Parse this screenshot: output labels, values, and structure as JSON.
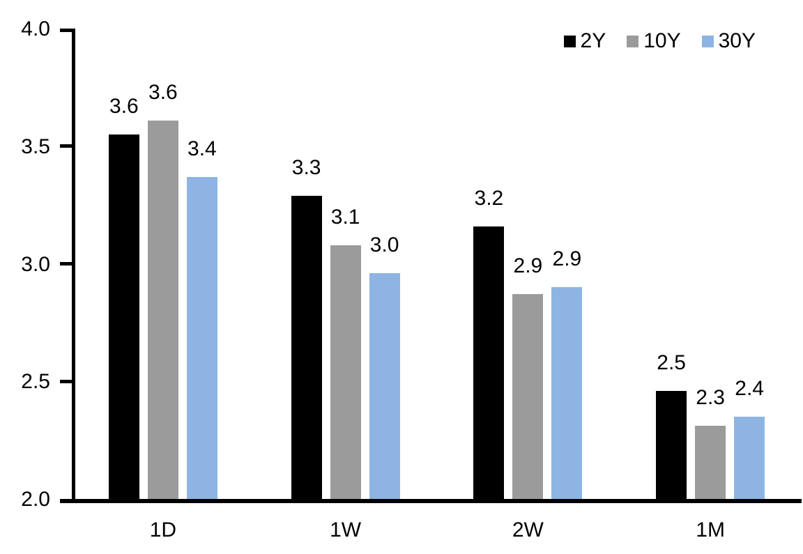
{
  "chart_data": {
    "type": "bar",
    "title": "",
    "xlabel": "",
    "ylabel": "",
    "categories": [
      "1D",
      "1W",
      "2W",
      "1M"
    ],
    "series": [
      {
        "name": "2Y",
        "color": "#000000",
        "values": [
          3.55,
          3.29,
          3.16,
          2.46
        ],
        "labels": [
          "3.6",
          "3.3",
          "3.2",
          "2.5"
        ]
      },
      {
        "name": "10Y",
        "color": "#9b9b9b",
        "values": [
          3.61,
          3.08,
          2.87,
          2.31
        ],
        "labels": [
          "3.6",
          "3.1",
          "2.9",
          "2.3"
        ]
      },
      {
        "name": "30Y",
        "color": "#8eb4e3",
        "values": [
          3.37,
          2.96,
          2.9,
          2.35
        ],
        "labels": [
          "3.4",
          "3.0",
          "2.9",
          "2.4"
        ]
      }
    ],
    "ylim": [
      2.0,
      4.0
    ],
    "yticks": [
      {
        "value": 2.0,
        "label": "2.0"
      },
      {
        "value": 2.5,
        "label": "2.5"
      },
      {
        "value": 3.0,
        "label": "3.0"
      },
      {
        "value": 3.5,
        "label": "3.5"
      },
      {
        "value": 4.0,
        "label": "4.0"
      }
    ],
    "grid": false,
    "legend_position": "top-right",
    "axis_color": "#000000",
    "background": "#ffffff"
  }
}
